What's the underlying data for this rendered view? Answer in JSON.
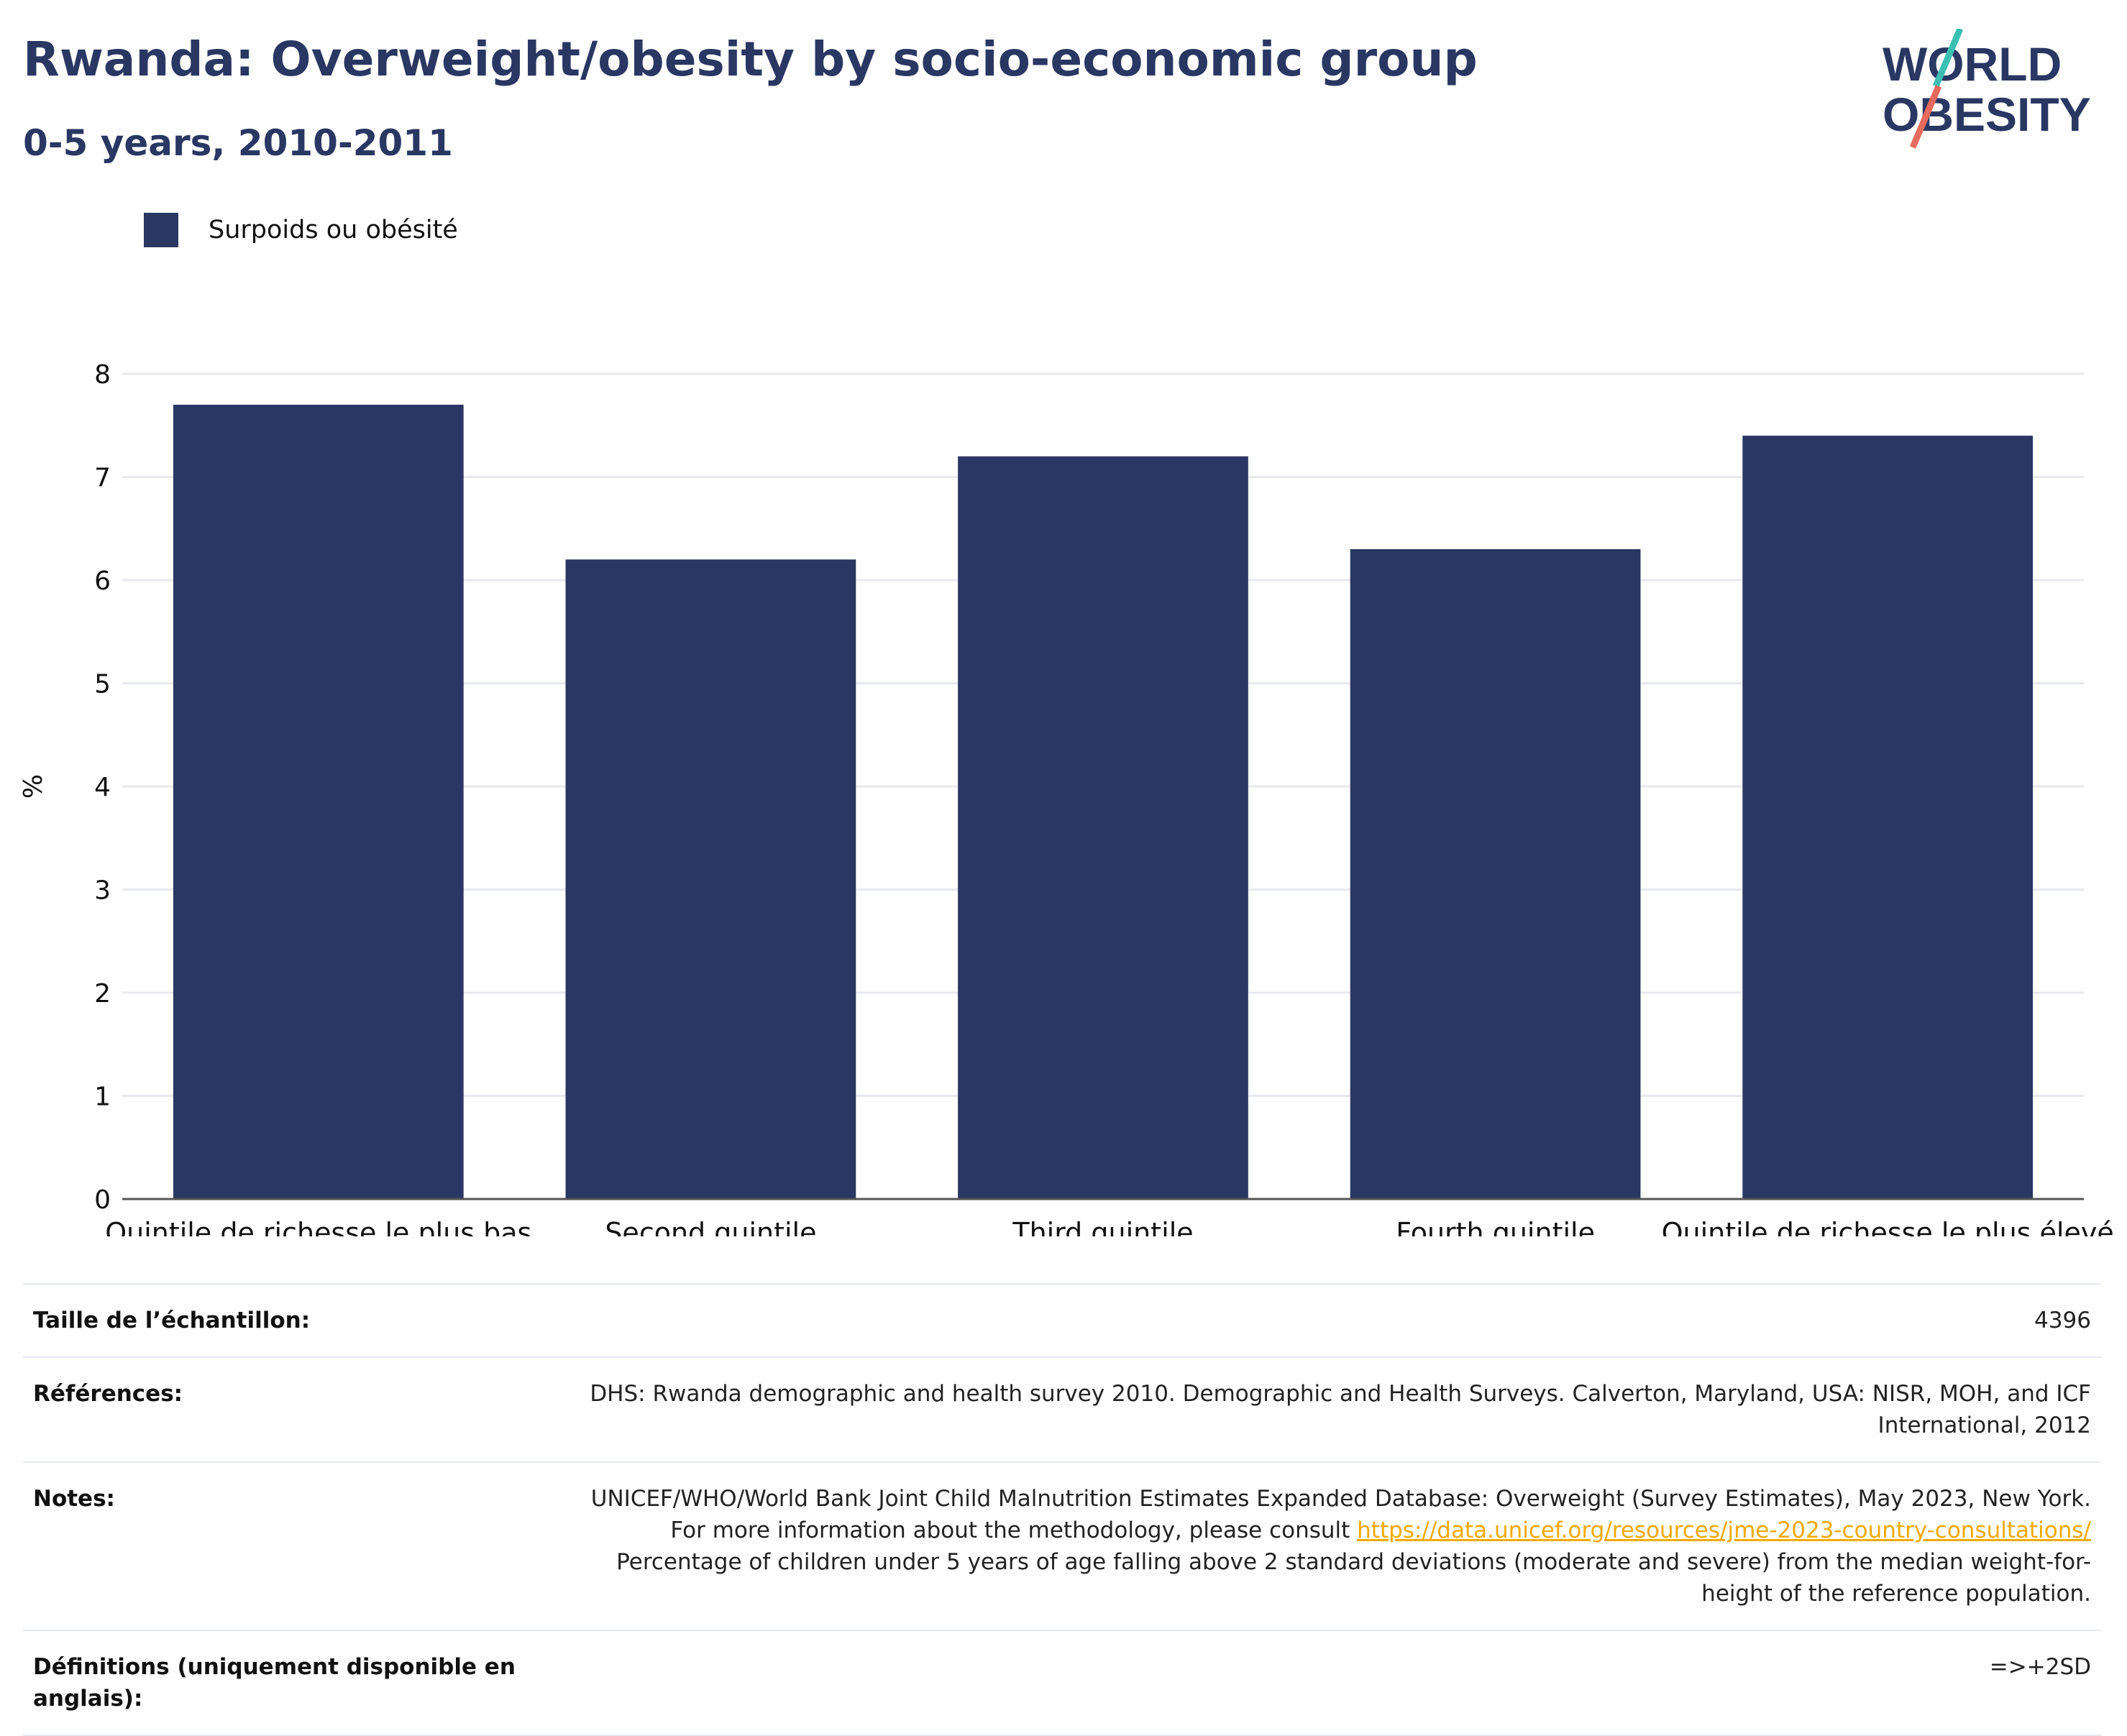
{
  "title": "Rwanda: Overweight/obesity by socio-economic group",
  "subtitle": "0-5 years, 2010-2011",
  "logo": {
    "line1": "WORLD",
    "line2": "OBESITY"
  },
  "colors": {
    "bar": "#2a3763",
    "title": "#2a3763",
    "logo_teal": "#3bbfb3",
    "logo_red": "#e76a5c",
    "link": "#f2a900"
  },
  "chart_data": {
    "type": "bar",
    "categories": [
      "Quintile de richesse le plus bas",
      "Second quintile",
      "Third quintile",
      "Fourth quintile",
      "Quintile de richesse le plus élevé"
    ],
    "series": [
      {
        "name": "Surpoids ou obésité",
        "values": [
          7.7,
          6.2,
          7.2,
          6.3,
          7.4
        ]
      }
    ],
    "ylabel": "%",
    "xlabel": "",
    "ylim": [
      0,
      8
    ],
    "yticks": [
      0,
      1,
      2,
      3,
      4,
      5,
      6,
      7,
      8
    ],
    "grid": true,
    "legend": "top-left"
  },
  "info": {
    "sample_label": "Taille de l’échantillon:",
    "sample_value": "4396",
    "refs_label": "Références:",
    "refs_value": "DHS: Rwanda demographic and health survey 2010. Demographic and Health Surveys. Calverton, Maryland, USA: NISR, MOH, and ICF International, 2012",
    "notes_label": "Notes:",
    "notes_before_link": "UNICEF/WHO/World Bank Joint Child Malnutrition Estimates Expanded Database: Overweight (Survey Estimates), May 2023, New York. For more information about the methodology, please consult ",
    "notes_link": "https://data.unicef.org/resources/jme-2023-country-consultations/",
    "notes_after_link": " Percentage of children under 5 years of age falling above 2 standard deviations (moderate and severe) from the median weight-for-height of the reference population.",
    "defs_label": "Définitions (uniquement disponible en anglais):",
    "defs_value": "=>+2SD"
  }
}
